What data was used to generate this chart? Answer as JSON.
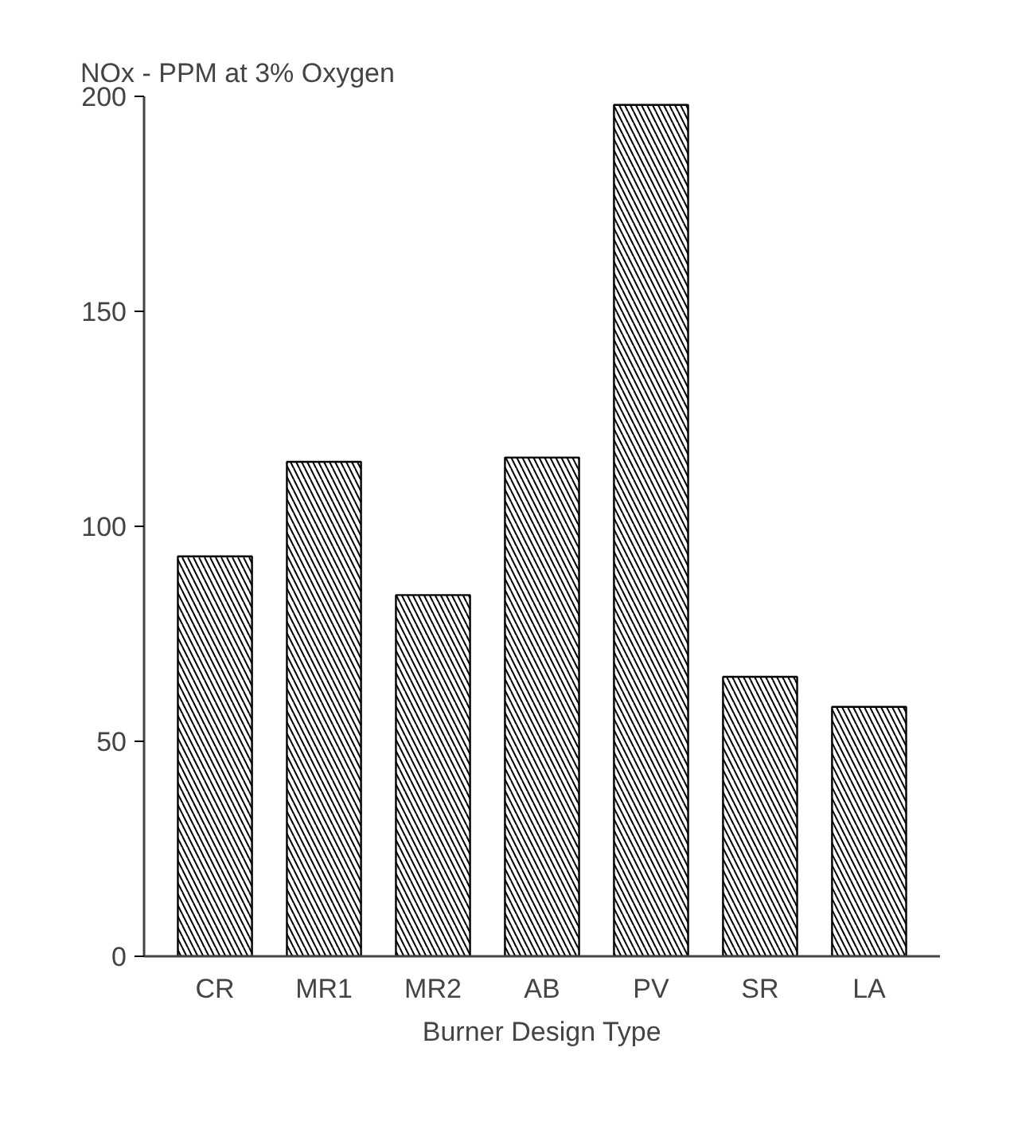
{
  "chart_data": {
    "type": "bar",
    "title": "NOx - PPM at 3% Oxygen",
    "xlabel": "Burner Design Type",
    "categories": [
      "CR",
      "MR1",
      "MR2",
      "AB",
      "PV",
      "SR",
      "LA"
    ],
    "values": [
      93,
      115,
      84,
      116,
      198,
      65,
      58
    ],
    "color": "#000000",
    "ylim": [
      0,
      200
    ],
    "yticks": [
      0,
      50,
      100,
      150,
      200
    ],
    "grid": false
  }
}
